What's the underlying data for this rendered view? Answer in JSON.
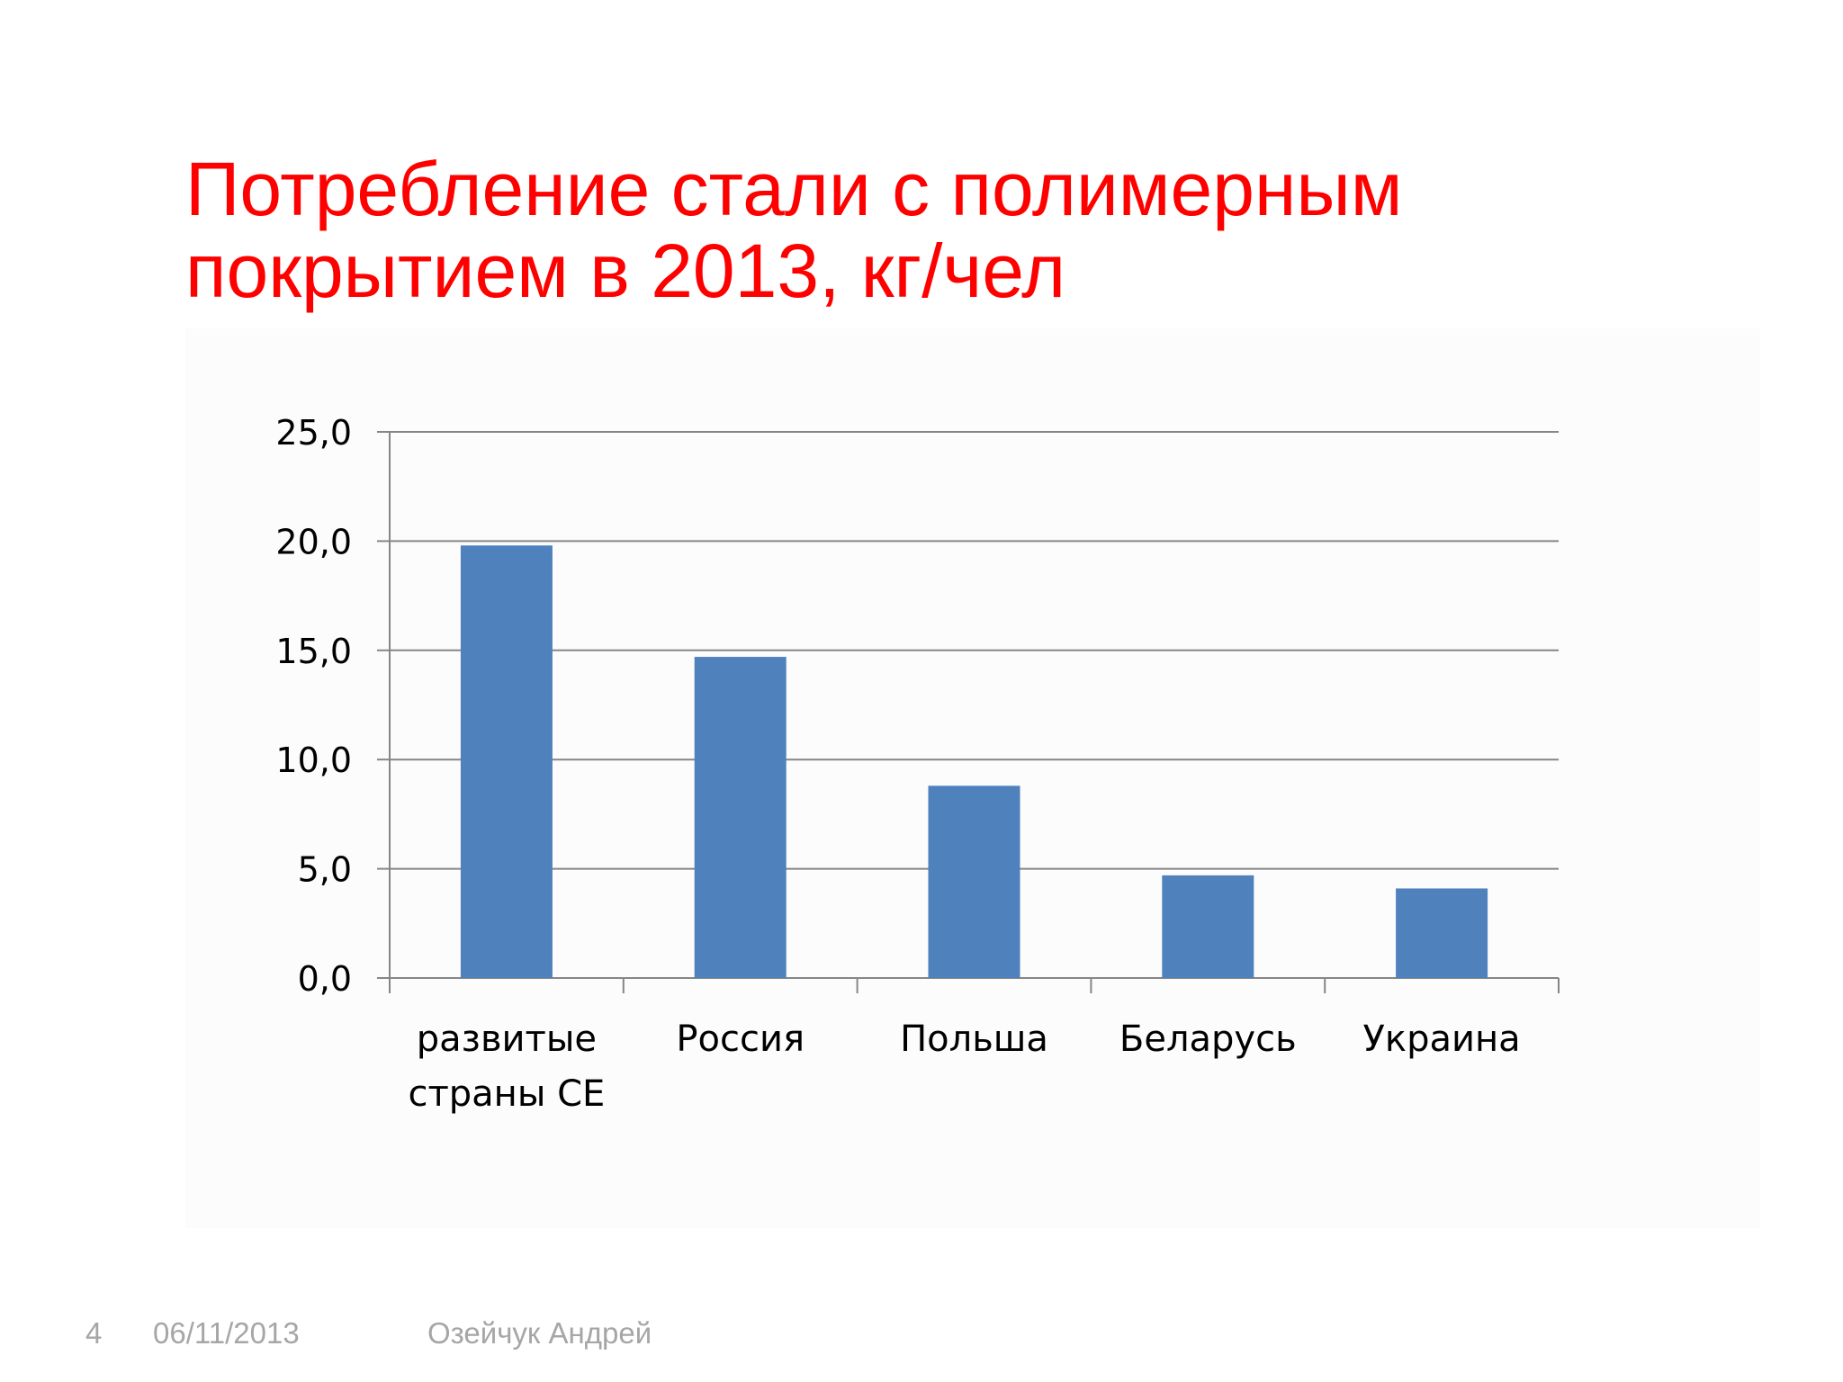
{
  "slide": {
    "title_line1": "Потребление стали с полимерным",
    "title_line2": "покрытием в 2013, кг/чел",
    "title_color": "#ff0000"
  },
  "chart_data": {
    "type": "bar",
    "categories": [
      [
        "развитые",
        "страны CE"
      ],
      [
        "Россия"
      ],
      [
        "Польша"
      ],
      [
        "Беларусь"
      ],
      [
        "Украина"
      ]
    ],
    "values": [
      19.8,
      14.7,
      8.8,
      4.7,
      4.1
    ],
    "ylim": [
      0,
      25
    ],
    "yticks": [
      "0,0",
      "5,0",
      "10,0",
      "15,0",
      "20,0",
      "25,0"
    ],
    "ytick_values": [
      0,
      5,
      10,
      15,
      20,
      25
    ],
    "grid": true,
    "bar_color": "#4f81bd",
    "grid_color": "#868686"
  },
  "footer": {
    "page": "4",
    "date": "06/11/2013",
    "author": "Озейчук Андрей"
  }
}
